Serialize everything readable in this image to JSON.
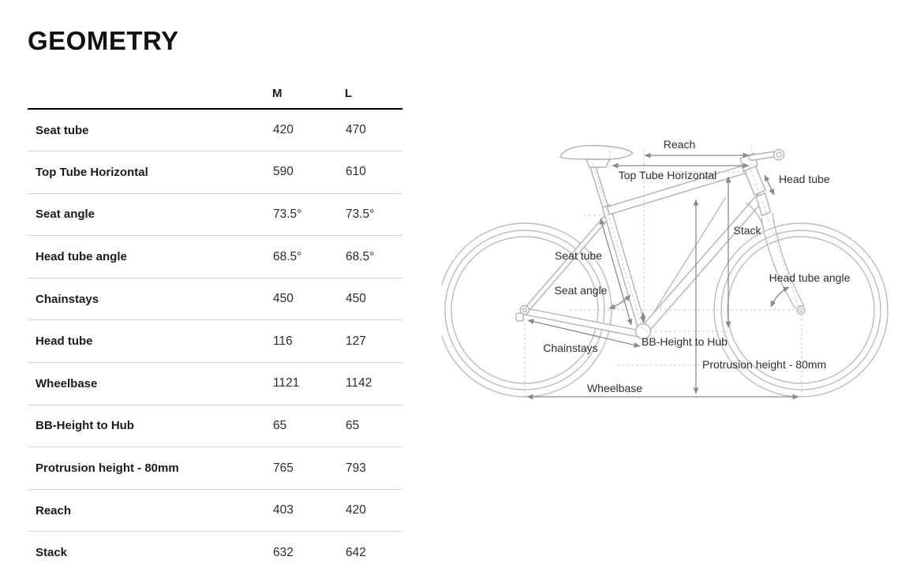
{
  "title": "GEOMETRY",
  "table": {
    "columns": [
      "M",
      "L"
    ],
    "rows": [
      {
        "label": "Seat tube",
        "m": "420",
        "l": "470"
      },
      {
        "label": "Top Tube Horizontal",
        "m": "590",
        "l": "610"
      },
      {
        "label": "Seat angle",
        "m": "73.5°",
        "l": "73.5°"
      },
      {
        "label": "Head tube angle",
        "m": "68.5°",
        "l": "68.5°"
      },
      {
        "label": "Chainstays",
        "m": "450",
        "l": "450"
      },
      {
        "label": "Head tube",
        "m": "116",
        "l": "127"
      },
      {
        "label": "Wheelbase",
        "m": "1121",
        "l": "1142"
      },
      {
        "label": "BB-Height to Hub",
        "m": "65",
        "l": "65"
      },
      {
        "label": "Protrusion height - 80mm",
        "m": "765",
        "l": "793"
      },
      {
        "label": "Reach",
        "m": "403",
        "l": "420"
      },
      {
        "label": "Stack",
        "m": "632",
        "l": "642"
      }
    ]
  },
  "diagram": {
    "labels": {
      "reach": "Reach",
      "top_tube_horizontal": "Top Tube Horizontal",
      "head_tube": "Head tube",
      "stack": "Stack",
      "seat_tube": "Seat tube",
      "seat_angle": "Seat angle",
      "head_tube_angle": "Head tube angle",
      "chainstays": "Chainstays",
      "bb_height_to_hub": "BB-Height to Hub",
      "protrusion_height": "Protrusion height - 80mm",
      "wheelbase": "Wheelbase"
    },
    "colors": {
      "bike_outline": "#b2b2b2",
      "dimension_arrow": "#8a8a8a",
      "dashed_reference": "#c9c9c9",
      "label_text": "#2d2d2d"
    }
  }
}
